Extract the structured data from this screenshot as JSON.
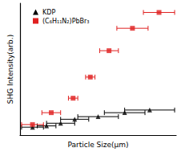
{
  "chart_data": {
    "type": "scatter",
    "x_label": "Particle Size(μm)",
    "y_label": "SHG Intensity(arb.)",
    "xlim": [
      0,
      100
    ],
    "ylim": [
      0,
      100
    ],
    "tick_labels": false,
    "grid": false,
    "legend": "upper left",
    "series": [
      {
        "name": "KDP",
        "color": "#000000",
        "marker": "triangle",
        "x": [
          8,
          17,
          26,
          35,
          50,
          67,
          83
        ],
        "values": [
          6,
          7,
          9,
          12,
          14,
          17,
          19
        ],
        "x_error": [
          7,
          6,
          9,
          9,
          13,
          13,
          16
        ]
      },
      {
        "name": "(C₆H₁₁N₂)PbBr₃",
        "color": "#e02020",
        "marker": "square",
        "x": [
          8,
          20,
          34,
          45,
          57,
          72,
          89
        ],
        "values": [
          8,
          17,
          28,
          44,
          64,
          81,
          93
        ],
        "x_error": [
          7,
          6,
          3,
          3,
          6,
          10,
          10
        ]
      }
    ]
  }
}
